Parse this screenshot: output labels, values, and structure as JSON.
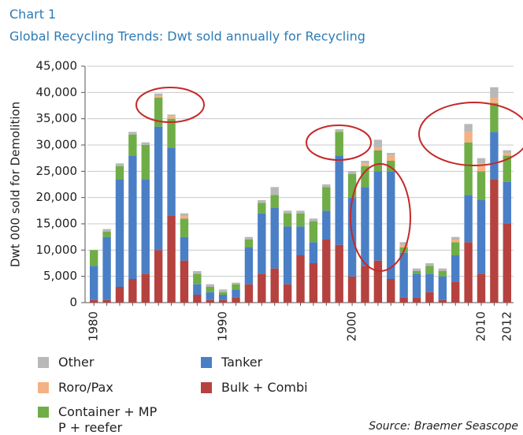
{
  "chart_data": {
    "type": "stacked-bar",
    "kicker": "Chart 1",
    "title": "Global Recycling Trends: Dwt sold annually for Recycling",
    "ylabel": "Dwt 000 sold for Demolition",
    "source": "Source: Braemer Seascope",
    "categories": [
      "1980",
      null,
      null,
      null,
      null,
      null,
      null,
      null,
      null,
      null,
      "1990",
      null,
      null,
      null,
      null,
      null,
      null,
      null,
      null,
      null,
      "2000",
      null,
      null,
      null,
      null,
      null,
      null,
      null,
      null,
      null,
      "2010",
      null,
      "2012"
    ],
    "series": [
      {
        "name": "Bulk + Combi",
        "color": "#b5423f",
        "values": [
          500,
          500,
          3000,
          4500,
          5500,
          10000,
          16500,
          8000,
          1500,
          500,
          500,
          1000,
          3500,
          5500,
          6500,
          3500,
          9000,
          7500,
          12000,
          11000,
          5000,
          7000,
          8000,
          4500,
          1000,
          1000,
          2000,
          500,
          4000,
          11500,
          5500,
          23500,
          15000
        ]
      },
      {
        "name": "Tanker",
        "color": "#4a7fc6",
        "values": [
          6500,
          12000,
          20500,
          23500,
          18000,
          23500,
          13000,
          4500,
          2000,
          1500,
          1000,
          1500,
          7000,
          11500,
          11500,
          11000,
          5500,
          4000,
          5500,
          17000,
          15000,
          15000,
          17000,
          20500,
          8500,
          4500,
          3500,
          4500,
          5000,
          9000,
          14000,
          9000,
          8000
        ]
      },
      {
        "name": "Container + MPP + reefer",
        "color": "#70ad47",
        "values": [
          3000,
          1000,
          2500,
          4000,
          6500,
          5500,
          5500,
          3500,
          2000,
          1000,
          500,
          1000,
          1500,
          2000,
          2500,
          2500,
          2500,
          4000,
          4500,
          4500,
          4500,
          4000,
          4000,
          2000,
          1000,
          500,
          1500,
          1000,
          2500,
          10000,
          5500,
          5500,
          5000
        ]
      },
      {
        "name": "Roro/Pax",
        "color": "#f4b183",
        "values": [
          0,
          0,
          0,
          0,
          0,
          300,
          500,
          500,
          0,
          0,
          0,
          0,
          0,
          0,
          0,
          0,
          0,
          0,
          0,
          0,
          0,
          500,
          500,
          1000,
          500,
          0,
          0,
          0,
          500,
          2000,
          1500,
          1000,
          500
        ]
      },
      {
        "name": "Other",
        "color": "#b8b8b8",
        "values": [
          0,
          500,
          500,
          500,
          500,
          500,
          300,
          500,
          500,
          500,
          500,
          300,
          500,
          500,
          1500,
          500,
          500,
          500,
          500,
          500,
          500,
          500,
          1500,
          500,
          500,
          500,
          500,
          500,
          500,
          1500,
          1000,
          2000,
          500
        ]
      }
    ],
    "ylim": [
      0,
      45000
    ],
    "yticks": [
      0,
      {
        "value": 5000,
        "label": "5,000"
      },
      {
        "value": 10000,
        "label": "10,000"
      },
      {
        "value": 15000,
        "label": "15,000"
      },
      {
        "value": 20000,
        "label": "20,000"
      },
      {
        "value": 25000,
        "label": "25,000"
      },
      {
        "value": 30000,
        "label": "30,000"
      },
      {
        "value": 35000,
        "label": "35,000"
      },
      {
        "value": 40000,
        "label": "40,000"
      },
      {
        "value": 45000,
        "label": "45,000"
      }
    ],
    "grid": true
  }
}
